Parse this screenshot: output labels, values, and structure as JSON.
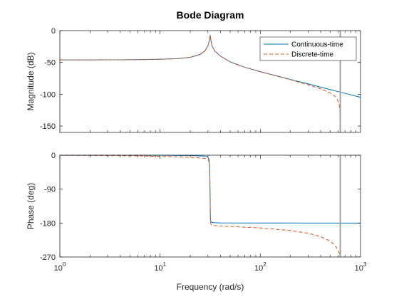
{
  "chart_data": {
    "type": "line",
    "title": "Bode Diagram",
    "xlabel": "Frequency (rad/s)",
    "x_scale": "log",
    "xlim": [
      1,
      1000
    ],
    "x_ticks": [
      {
        "value": 1,
        "base": "10",
        "exp": "0"
      },
      {
        "value": 10,
        "base": "10",
        "exp": "1"
      },
      {
        "value": 100,
        "base": "10",
        "exp": "2"
      },
      {
        "value": 1000,
        "base": "10",
        "exp": "3"
      }
    ],
    "nyquist_marker": 628.3,
    "legend": {
      "placement": "top-right",
      "entries": [
        {
          "name": "Continuous-time",
          "color": "#0072BD",
          "style": "solid"
        },
        {
          "name": "Discrete-time",
          "color": "#D95319",
          "style": "dashed"
        }
      ]
    },
    "panels": [
      {
        "id": "magnitude",
        "ylabel": "Magnitude (dB)",
        "ylim": [
          -160,
          0
        ],
        "yticks": [
          0,
          -50,
          -100,
          -150
        ],
        "series": [
          {
            "name": "Continuous-time",
            "x": [
              1,
              2,
              5,
              10,
              15,
              20,
              25,
              28,
              30,
              31,
              31.6,
              32.2,
              33,
              35,
              40,
              50,
              70,
              100,
              150,
              200,
              300,
              400,
              500,
              628.3,
              800,
              1000
            ],
            "y": [
              -46,
              -46,
              -45.8,
              -45,
              -44,
              -42,
              -37.5,
              -32,
              -24,
              -16,
              -7,
              -16,
              -24,
              -31.8,
              -40,
              -49.1,
              -57.7,
              -64.5,
              -71.7,
              -76.7,
              -83.8,
              -88.8,
              -92.7,
              -96.7,
              -100.9,
              -104.8
            ]
          },
          {
            "name": "Discrete-time",
            "x": [
              1,
              2,
              5,
              10,
              15,
              20,
              25,
              28,
              30,
              31,
              31.6,
              32.2,
              33,
              35,
              40,
              50,
              70,
              100,
              150,
              200,
              300,
              400,
              500,
              560,
              600,
              615,
              625,
              628.3
            ],
            "y": [
              -46,
              -46,
              -45.8,
              -45,
              -44,
              -42,
              -37.5,
              -32,
              -24,
              -16,
              -7,
              -16,
              -24,
              -31.8,
              -40,
              -49.1,
              -57.7,
              -64.5,
              -71.9,
              -77.2,
              -85.1,
              -91.5,
              -98,
              -103.5,
              -111,
              -118,
              -132,
              -160
            ]
          }
        ]
      },
      {
        "id": "phase",
        "ylabel": "Phase (deg)",
        "ylim": [
          -270,
          0
        ],
        "yticks": [
          0,
          -90,
          -180,
          -270
        ],
        "series": [
          {
            "name": "Continuous-time",
            "x": [
              1,
              5,
              10,
              20,
              28,
              30,
              30.8,
              31.2,
              31.4,
              31.5,
              31.6,
              31.7,
              31.8,
              32,
              32.4,
              33,
              35,
              40,
              100,
              1000
            ],
            "y": [
              0,
              -0.1,
              -0.3,
              -0.8,
              -2.5,
              -5,
              -12,
              -30,
              -60,
              -90,
              -120,
              -150,
              -168,
              -174,
              -177,
              -178.5,
              -179.2,
              -179.6,
              -179.9,
              -180
            ]
          },
          {
            "name": "Discrete-time",
            "x": [
              1,
              5,
              10,
              20,
              28,
              30,
              30.8,
              31.2,
              31.4,
              31.5,
              31.6,
              31.7,
              31.8,
              32,
              32.4,
              33,
              35,
              40,
              50,
              70,
              100,
              150,
              200,
              300,
              400,
              500,
              560,
              600,
              628.3
            ],
            "y": [
              -0.3,
              -1.5,
              -3,
              -5.5,
              -8.5,
              -11,
              -18,
              -36,
              -66,
              -96,
              -127,
              -158,
              -175,
              -181,
              -184,
              -186,
              -187,
              -188,
              -189,
              -191,
              -193,
              -197,
              -200,
              -207,
              -216,
              -228,
              -240,
              -252,
              -270
            ]
          }
        ]
      }
    ]
  }
}
